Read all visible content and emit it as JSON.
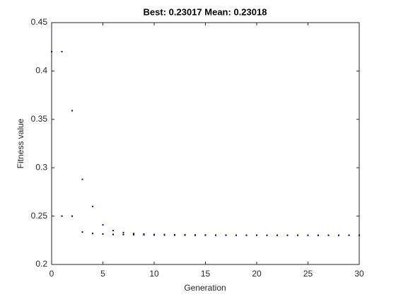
{
  "chart_data": {
    "type": "scatter",
    "title": "Best: 0.23017 Mean: 0.23018",
    "x_label": "Generation",
    "y_label": "Fitness value",
    "x": [
      0,
      1,
      2,
      3,
      4,
      5,
      6,
      7,
      8,
      9,
      10,
      11,
      12,
      13,
      14,
      15,
      16,
      17,
      18,
      19,
      20,
      21,
      22,
      23,
      24,
      25,
      26,
      27,
      28,
      29,
      30
    ],
    "series": [
      {
        "color": "#000000",
        "values": [
          0.42,
          0.25,
          0.25,
          0.2335,
          0.232,
          0.2315,
          0.231,
          0.231,
          0.2308,
          0.2306,
          0.2305,
          0.2304,
          0.2303,
          0.2303,
          0.2302,
          0.2302,
          0.2302,
          0.2302,
          0.2302,
          0.2302,
          0.2302,
          0.2302,
          0.2302,
          0.2302,
          0.2302,
          0.2302,
          0.2302,
          0.2302,
          0.2302,
          0.2302,
          0.23017
        ]
      },
      {
        "color": "#0000ff",
        "values": [
          0.42,
          0.42,
          0.359,
          0.288,
          0.26,
          0.241,
          0.235,
          0.233,
          0.232,
          0.2315,
          0.231,
          0.231,
          0.2308,
          0.2307,
          0.2306,
          0.2305,
          0.2304,
          0.2304,
          0.2303,
          0.2303,
          0.2303,
          0.2302,
          0.2302,
          0.2302,
          0.2302,
          0.2302,
          0.2302,
          0.2302,
          0.2302,
          0.2302,
          0.23018
        ]
      }
    ],
    "xlim": [
      0,
      30
    ],
    "xticks": [
      0,
      5,
      10,
      15,
      20,
      25,
      30
    ],
    "ylim": [
      0.2,
      0.45
    ],
    "yticks": [
      0.2,
      0.25,
      0.3,
      0.35,
      0.4,
      0.45
    ],
    "grid": false
  }
}
